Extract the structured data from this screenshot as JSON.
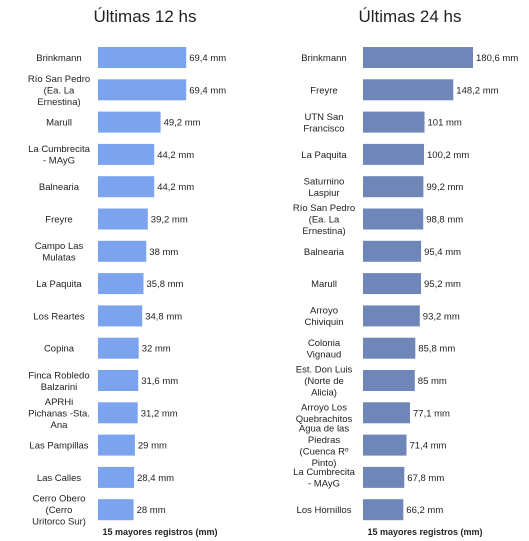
{
  "chart_data": [
    {
      "type": "bar",
      "orientation": "horizontal",
      "title": "Últimas 12 hs",
      "xlabel": "15 mayores registros (mm)",
      "ylabel": "",
      "color": "#7ba3ee",
      "xlim": [
        0,
        70
      ],
      "unit": "mm",
      "categories": [
        "Brinkmann",
        "Río San Pedro (Ea. La Ernestina)",
        "Marull",
        "La Cumbrecita - MAyG",
        "Balnearia",
        "Freyre",
        "Campo Las Mulatas",
        "La Paquita",
        "Los Reartes",
        "Copina",
        "Finca Robledo Balzarini",
        "APRHi Pichanas -Sta. Ana",
        "Las Pampillas",
        "Las Calles",
        "Cerro Obero (Cerro Uritorco Sur)"
      ],
      "category_lines": [
        [
          "Brinkmann"
        ],
        [
          "Río San Pedro",
          "(Ea. La",
          "Ernestina)"
        ],
        [
          "Marull"
        ],
        [
          "La Cumbrecita",
          "- MAyG"
        ],
        [
          "Balnearia"
        ],
        [
          "Freyre"
        ],
        [
          "Campo Las",
          "Mulatas"
        ],
        [
          "La Paquita"
        ],
        [
          "Los Reartes"
        ],
        [
          "Copina"
        ],
        [
          "Finca Robledo",
          "Balzarini"
        ],
        [
          "APRHi",
          "Pichanas -Sta.",
          "Ana"
        ],
        [
          "Las Pampillas"
        ],
        [
          "Las Calles"
        ],
        [
          "Cerro Obero",
          "(Cerro",
          "Uritorco Sur)"
        ]
      ],
      "values": [
        69.4,
        69.4,
        49.2,
        44.2,
        44.2,
        39.2,
        38,
        35.8,
        34.8,
        32,
        31.6,
        31.2,
        29,
        28.4,
        28
      ],
      "labels": [
        "69,4 mm",
        "69,4 mm",
        "49,2 mm",
        "44,2 mm",
        "44,2 mm",
        "39,2 mm",
        "38 mm",
        "35,8 mm",
        "34,8 mm",
        "32 mm",
        "31,6 mm",
        "31,2 mm",
        "29 mm",
        "28,4 mm",
        "28 mm"
      ]
    },
    {
      "type": "bar",
      "orientation": "horizontal",
      "title": "Últimas 24 hs",
      "xlabel": "15 mayores registros (mm)",
      "ylabel": "",
      "color": "#6f86b8",
      "xlim": [
        0,
        180.6
      ],
      "unit": "mm",
      "categories": [
        "Brinkmann",
        "Freyre",
        "UTN San Francisco",
        "La Paquita",
        "Saturnino Laspiur",
        "Río San Pedro (Ea. La Ernestina)",
        "Balnearia",
        "Marull",
        "Arroyo Chiviquin",
        "Colonia Vignaud",
        "Est. Don Luis (Norte de Alicia)",
        "Arroyo Los Quebrachitos",
        "Agua de las Piedras (Cuenca Rº Pinto)",
        "La Cumbrecita - MAyG",
        "Los Hornillos"
      ],
      "category_lines": [
        [
          "Brinkmann"
        ],
        [
          "Freyre"
        ],
        [
          "UTN San",
          "Francisco"
        ],
        [
          "La Paquita"
        ],
        [
          "Saturnino",
          "Laspiur"
        ],
        [
          "Río San Pedro",
          "(Ea. La",
          "Ernestina)"
        ],
        [
          "Balnearia"
        ],
        [
          "Marull"
        ],
        [
          "Arroyo",
          "Chiviquin"
        ],
        [
          "Colonia",
          "Vignaud"
        ],
        [
          "Est. Don Luis",
          "(Norte de",
          "Alicia)"
        ],
        [
          "Arroyo Los",
          "Quebrachitos"
        ],
        [
          "Agua de las",
          "Piedras",
          "(Cuenca Rº",
          "Pinto)"
        ],
        [
          "La Cumbrecita",
          "- MAyG"
        ],
        [
          "Los Hornillos"
        ]
      ],
      "values": [
        180.6,
        148.2,
        101,
        100.2,
        99.2,
        98.8,
        95.4,
        95.2,
        93.2,
        85.8,
        85,
        77.1,
        71.4,
        67.8,
        66.2
      ],
      "labels": [
        "180,6 mm",
        "148,2 mm",
        "101 mm",
        "100,2 mm",
        "99,2 mm",
        "98,8 mm",
        "95,4 mm",
        "95,2 mm",
        "93,2 mm",
        "85,8 mm",
        "85 mm",
        "77,1 mm",
        "71,4 mm",
        "67,8 mm",
        "66,2 mm"
      ]
    }
  ]
}
